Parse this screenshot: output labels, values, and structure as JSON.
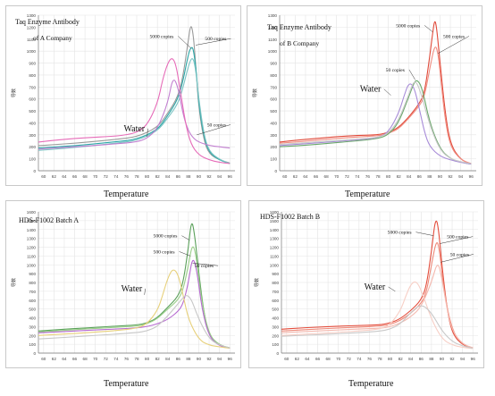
{
  "chart_data": [
    {
      "type": "line",
      "title": "Taq Enzyme Antibody",
      "subtitle": "of A Company",
      "xlabel": "Temperature",
      "ylabel": "导数",
      "xlim": [
        59,
        97
      ],
      "ylim": [
        0,
        1300
      ],
      "xticks": [
        60,
        62,
        64,
        66,
        68,
        70,
        72,
        74,
        76,
        78,
        80,
        82,
        84,
        86,
        88,
        90,
        92,
        94,
        96
      ],
      "yticks": [
        0,
        100,
        200,
        300,
        400,
        500,
        600,
        700,
        800,
        900,
        1000,
        1100,
        1200,
        1300
      ],
      "grid": true,
      "annotations": [
        {
          "text": "5000 copies",
          "x": 80.5,
          "y": 1110,
          "ax": 88.6,
          "ay": 1020
        },
        {
          "text": "500 copies",
          "x": 91.2,
          "y": 1090,
          "ax": 89.4,
          "ay": 1050
        },
        {
          "text": "Water",
          "x": 75.5,
          "y": 330,
          "ax": 80,
          "ay": 285
        },
        {
          "text": "50 copies",
          "x": 91.6,
          "y": 370,
          "ax": 89.6,
          "ay": 300
        }
      ],
      "series": [
        {
          "color": "#9a9a9a",
          "x": [
            59,
            62,
            66,
            70,
            74,
            78,
            82,
            84,
            86,
            87,
            88,
            88.5,
            89,
            89.5,
            90,
            91,
            92,
            94,
            96
          ],
          "y": [
            210,
            218,
            230,
            245,
            262,
            282,
            360,
            480,
            620,
            800,
            1100,
            1235,
            1120,
            830,
            520,
            250,
            140,
            90,
            65
          ]
        },
        {
          "color": "#2aa7a7",
          "x": [
            59,
            62,
            66,
            70,
            74,
            78,
            82,
            84,
            86,
            87,
            88,
            88.6,
            89,
            89.6,
            90,
            91,
            92,
            94,
            96
          ],
          "y": [
            190,
            198,
            210,
            225,
            242,
            262,
            340,
            460,
            600,
            760,
            980,
            1040,
            1010,
            800,
            550,
            280,
            150,
            90,
            60
          ]
        },
        {
          "color": "#7cc4c4",
          "x": [
            59,
            62,
            66,
            70,
            74,
            78,
            82,
            84,
            86,
            87,
            88,
            88.8,
            89.4,
            90,
            91,
            92,
            94,
            96
          ],
          "y": [
            170,
            180,
            195,
            212,
            230,
            252,
            330,
            440,
            560,
            700,
            880,
            960,
            850,
            600,
            300,
            160,
            95,
            60
          ]
        },
        {
          "color": "#c27fd0",
          "x": [
            59,
            62,
            66,
            70,
            74,
            78,
            80,
            82,
            84,
            85,
            86,
            87,
            88,
            89,
            90,
            92,
            94,
            96
          ],
          "y": [
            180,
            190,
            200,
            212,
            225,
            240,
            270,
            350,
            560,
            790,
            700,
            460,
            330,
            270,
            240,
            210,
            200,
            190
          ]
        },
        {
          "color": "#e66bb8",
          "x": [
            59,
            62,
            66,
            70,
            72,
            74,
            76,
            78,
            80,
            82,
            83,
            84,
            84.8,
            85.6,
            86.5,
            87.5,
            88.5,
            90,
            92,
            94,
            96
          ],
          "y": [
            240,
            255,
            270,
            280,
            285,
            290,
            300,
            320,
            380,
            560,
            760,
            900,
            950,
            890,
            650,
            380,
            220,
            130,
            90,
            70,
            60
          ]
        }
      ]
    },
    {
      "type": "line",
      "title": "Taq Enzyme Antibody",
      "subtitle": "of B Company",
      "xlabel": "Temperature",
      "ylabel": "导数",
      "xlim": [
        59,
        97
      ],
      "ylim": [
        0,
        1300
      ],
      "xticks": [
        60,
        62,
        64,
        66,
        68,
        70,
        72,
        74,
        76,
        78,
        80,
        82,
        84,
        86,
        88,
        90,
        92,
        94,
        96
      ],
      "yticks": [
        0,
        100,
        200,
        300,
        400,
        500,
        600,
        700,
        800,
        900,
        1000,
        1100,
        1200,
        1300
      ],
      "grid": true,
      "annotations": [
        {
          "text": "5000 copies",
          "x": 81.5,
          "y": 1200,
          "ax": 88.6,
          "ay": 1160
        },
        {
          "text": "500 copies",
          "x": 90.6,
          "y": 1110,
          "ax": 89.6,
          "ay": 980
        },
        {
          "text": "50 copies",
          "x": 79.5,
          "y": 830,
          "ax": 85.2,
          "ay": 760
        },
        {
          "text": "Water",
          "x": 74.5,
          "y": 660,
          "ax": 80.5,
          "ay": 630
        }
      ],
      "series": [
        {
          "color": "#e04a3a",
          "x": [
            59,
            62,
            66,
            70,
            74,
            78,
            80,
            82,
            84,
            86,
            87,
            88,
            88.6,
            89,
            89.4,
            90,
            91,
            92,
            94,
            96
          ],
          "y": [
            240,
            255,
            270,
            285,
            295,
            300,
            320,
            360,
            450,
            560,
            650,
            950,
            1160,
            1270,
            1180,
            900,
            480,
            220,
            90,
            60
          ]
        },
        {
          "color": "#f08c80",
          "x": [
            59,
            62,
            66,
            70,
            74,
            78,
            80,
            82,
            84,
            86,
            87,
            88,
            89,
            89.6,
            90.2,
            91,
            92,
            94,
            96
          ],
          "y": [
            230,
            240,
            255,
            270,
            282,
            292,
            310,
            350,
            440,
            540,
            620,
            850,
            1060,
            990,
            750,
            420,
            200,
            90,
            60
          ]
        },
        {
          "color": "#6aa86a",
          "x": [
            59,
            62,
            66,
            70,
            74,
            78,
            80,
            82,
            84,
            85,
            85.6,
            86.5,
            88,
            90,
            92,
            94,
            96
          ],
          "y": [
            200,
            208,
            220,
            235,
            250,
            268,
            300,
            400,
            620,
            740,
            760,
            700,
            400,
            180,
            100,
            70,
            55
          ]
        },
        {
          "color": "#a78bd8",
          "x": [
            59,
            62,
            66,
            70,
            74,
            78,
            80,
            82,
            83,
            84,
            85,
            86,
            87,
            88,
            90,
            92,
            94,
            96
          ],
          "y": [
            210,
            220,
            232,
            245,
            258,
            275,
            320,
            480,
            620,
            740,
            700,
            520,
            320,
            200,
            120,
            90,
            70,
            55
          ]
        },
        {
          "color": "#c7c7c7",
          "x": [
            59,
            62,
            66,
            70,
            74,
            78,
            80,
            82,
            84,
            85,
            86,
            88,
            90,
            92,
            94,
            96
          ],
          "y": [
            220,
            228,
            240,
            252,
            264,
            278,
            310,
            420,
            640,
            760,
            700,
            380,
            170,
            100,
            75,
            60
          ]
        }
      ]
    },
    {
      "type": "line",
      "title": "HDS-F1002 Batch A",
      "xlabel": "Temperature",
      "ylabel": "导数",
      "xlim": [
        59,
        97
      ],
      "ylim": [
        0,
        1600
      ],
      "xticks": [
        60,
        62,
        64,
        66,
        68,
        70,
        72,
        74,
        76,
        78,
        80,
        82,
        84,
        86,
        88,
        90,
        92,
        94,
        96
      ],
      "yticks": [
        0,
        100,
        200,
        300,
        400,
        500,
        600,
        700,
        800,
        900,
        1000,
        1100,
        1200,
        1300,
        1400,
        1500,
        1600
      ],
      "grid": true,
      "annotations": [
        {
          "text": "5000 copies",
          "x": 81.2,
          "y": 1310,
          "ax": 88.2,
          "ay": 1280
        },
        {
          "text": "500 copies",
          "x": 81.2,
          "y": 1130,
          "ax": 88.4,
          "ay": 1100
        },
        {
          "text": "50 copies",
          "x": 89.2,
          "y": 970,
          "ax": 88.8,
          "ay": 1020
        },
        {
          "text": "Water",
          "x": 75,
          "y": 700,
          "ax": 79.5,
          "ay": 660
        }
      ],
      "series": [
        {
          "color": "#5aa05a",
          "x": [
            59,
            62,
            66,
            70,
            74,
            78,
            80,
            82,
            84,
            86,
            87,
            88,
            88.6,
            89.2,
            90,
            91,
            92,
            94,
            96
          ],
          "y": [
            250,
            262,
            278,
            292,
            305,
            318,
            340,
            400,
            520,
            640,
            800,
            1200,
            1520,
            1350,
            900,
            450,
            200,
            90,
            60
          ]
        },
        {
          "color": "#9bcf8a",
          "x": [
            59,
            62,
            66,
            70,
            74,
            78,
            80,
            82,
            84,
            86,
            87,
            88,
            88.8,
            89.5,
            90.5,
            92,
            94,
            96
          ],
          "y": [
            240,
            250,
            265,
            280,
            292,
            305,
            330,
            390,
            500,
            600,
            720,
            1000,
            1250,
            1100,
            600,
            200,
            90,
            60
          ]
        },
        {
          "color": "#b66ad0",
          "x": [
            59,
            62,
            66,
            70,
            74,
            78,
            80,
            82,
            84,
            86,
            87,
            88,
            88.8,
            89.6,
            90.6,
            92,
            94,
            96
          ],
          "y": [
            230,
            238,
            250,
            262,
            272,
            285,
            300,
            330,
            380,
            470,
            560,
            800,
            1100,
            950,
            500,
            180,
            80,
            55
          ]
        },
        {
          "color": "#e7d07a",
          "x": [
            59,
            62,
            66,
            70,
            74,
            78,
            80,
            82,
            83,
            84,
            85,
            86,
            87,
            88,
            90,
            92,
            94,
            96
          ],
          "y": [
            200,
            210,
            222,
            238,
            255,
            280,
            330,
            480,
            650,
            850,
            960,
            900,
            650,
            380,
            150,
            90,
            70,
            55
          ]
        },
        {
          "color": "#c7c7c7",
          "x": [
            59,
            62,
            66,
            70,
            74,
            78,
            80,
            82,
            84,
            86,
            88,
            90,
            92,
            94,
            96
          ],
          "y": [
            160,
            170,
            185,
            200,
            215,
            232,
            250,
            300,
            420,
            560,
            700,
            380,
            160,
            90,
            60
          ]
        }
      ]
    },
    {
      "type": "line",
      "title": "HDS-F1002 Batch B",
      "xlabel": "Temperature",
      "ylabel": "导数",
      "xlim": [
        59,
        97
      ],
      "ylim": [
        0,
        1600
      ],
      "xticks": [
        60,
        62,
        64,
        66,
        68,
        70,
        72,
        74,
        76,
        78,
        80,
        82,
        84,
        86,
        88,
        90,
        92,
        94,
        96
      ],
      "yticks": [
        0,
        100,
        200,
        300,
        400,
        500,
        600,
        700,
        800,
        900,
        1000,
        1100,
        1200,
        1300,
        1400,
        1500,
        1600
      ],
      "grid": true,
      "annotations": [
        {
          "text": "5000 copies",
          "x": 79.5,
          "y": 1350,
          "ax": 88.4,
          "ay": 1330
        },
        {
          "text": "500 copies",
          "x": 91,
          "y": 1300,
          "ax": 89.6,
          "ay": 1240
        },
        {
          "text": "50 copies",
          "x": 91.6,
          "y": 1100,
          "ax": 89.8,
          "ay": 1030
        },
        {
          "text": "Water",
          "x": 75,
          "y": 720,
          "ax": 81,
          "ay": 700
        }
      ],
      "series": [
        {
          "color": "#e34d3c",
          "x": [
            59,
            62,
            66,
            70,
            74,
            78,
            80,
            82,
            84,
            86,
            87,
            88,
            88.8,
            89.4,
            90,
            91,
            92,
            94,
            96
          ],
          "y": [
            270,
            282,
            295,
            305,
            312,
            320,
            340,
            390,
            480,
            600,
            750,
            1150,
            1550,
            1400,
            1000,
            500,
            220,
            90,
            60
          ]
        },
        {
          "color": "#ee8a7a",
          "x": [
            59,
            62,
            66,
            70,
            74,
            78,
            80,
            82,
            84,
            86,
            87,
            88,
            89,
            89.6,
            90.4,
            92,
            94,
            96
          ],
          "y": [
            250,
            260,
            272,
            285,
            295,
            305,
            322,
            370,
            450,
            560,
            680,
            1000,
            1300,
            1150,
            700,
            250,
            100,
            60
          ]
        },
        {
          "color": "#f4b8ae",
          "x": [
            59,
            62,
            66,
            70,
            74,
            78,
            80,
            82,
            84,
            86,
            88,
            89.2,
            90,
            91,
            92,
            94,
            96
          ],
          "y": [
            230,
            240,
            250,
            262,
            272,
            282,
            298,
            340,
            410,
            520,
            800,
            1050,
            850,
            500,
            250,
            100,
            60
          ]
        },
        {
          "color": "#f7cfc6",
          "x": [
            59,
            62,
            66,
            70,
            74,
            78,
            80,
            82,
            83,
            84,
            85,
            86,
            88,
            90,
            92,
            94,
            96
          ],
          "y": [
            200,
            210,
            222,
            236,
            250,
            270,
            320,
            480,
            640,
            780,
            820,
            720,
            380,
            160,
            90,
            65,
            50
          ]
        },
        {
          "color": "#c9c9c9",
          "x": [
            59,
            62,
            66,
            70,
            74,
            78,
            80,
            82,
            84,
            86,
            88,
            90,
            92,
            94,
            96
          ],
          "y": [
            190,
            198,
            208,
            220,
            232,
            248,
            270,
            330,
            460,
            560,
            460,
            250,
            130,
            80,
            55
          ]
        }
      ]
    }
  ]
}
